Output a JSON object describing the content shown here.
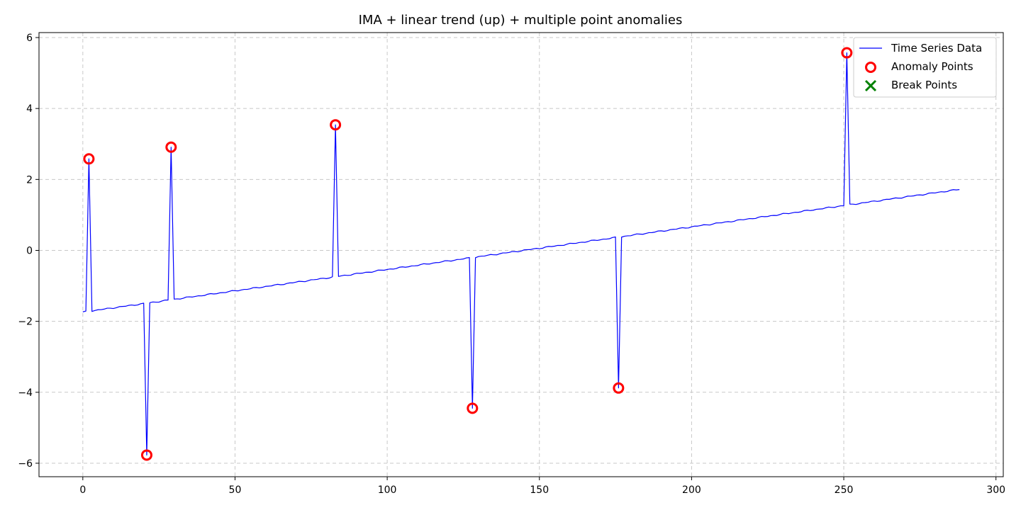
{
  "chart_data": {
    "type": "line",
    "title": "IMA + linear trend (up) + multiple point anomalies",
    "xlabel": "",
    "ylabel": "",
    "xlim": [
      -14.4,
      302.4
    ],
    "ylim": [
      -6.38,
      6.14
    ],
    "xticks": [
      0,
      50,
      100,
      150,
      200,
      250,
      300
    ],
    "yticks": [
      -6,
      -4,
      -2,
      0,
      2,
      4,
      6
    ],
    "grid": true,
    "legend_position": "top-right",
    "colors": {
      "series": "#0000ff",
      "anomaly": "#ff0000",
      "break": "#008000",
      "grid": "#c8c8c8"
    },
    "series": [
      {
        "name": "Time Series Data",
        "style": "line",
        "trend": {
          "x_start": 0,
          "y_start": -1.74,
          "x_end": 288,
          "y_end": 1.72
        },
        "x": [
          0,
          1,
          2,
          3,
          20,
          21,
          22,
          28,
          29,
          30,
          82,
          83,
          84,
          127,
          128,
          129,
          175,
          176,
          177,
          250,
          251,
          252,
          288
        ],
        "y": [
          -1.74,
          -1.72,
          2.58,
          -1.7,
          -1.5,
          -5.77,
          -1.48,
          -1.4,
          2.91,
          -1.35,
          -0.75,
          3.54,
          -0.72,
          -0.2,
          -4.45,
          -0.18,
          0.37,
          -3.88,
          0.4,
          1.28,
          5.57,
          1.3,
          1.72
        ]
      },
      {
        "name": "Anomaly Points",
        "style": "circle",
        "x": [
          2,
          21,
          29,
          83,
          128,
          176,
          251
        ],
        "y": [
          2.58,
          -5.77,
          2.91,
          3.54,
          -4.45,
          -3.88,
          5.57
        ]
      },
      {
        "name": "Break Points",
        "style": "x",
        "x": [],
        "y": []
      }
    ]
  }
}
